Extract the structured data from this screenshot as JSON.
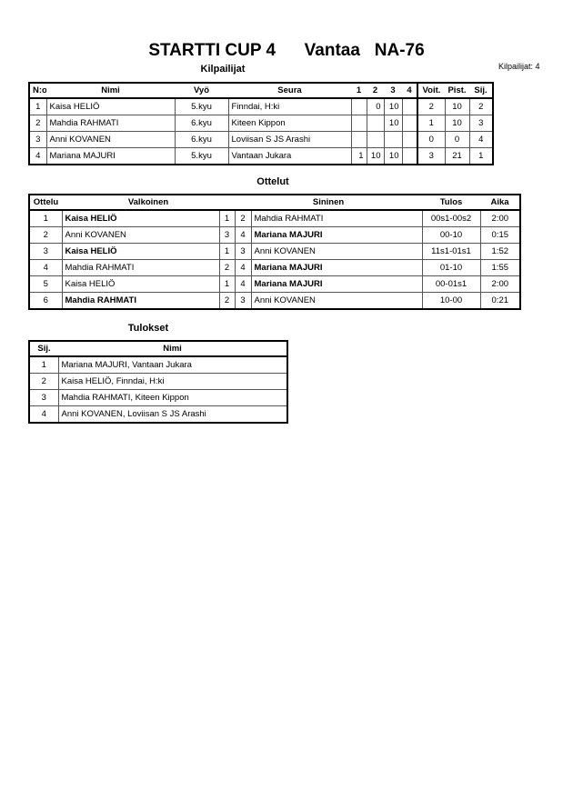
{
  "header": {
    "title": "STARTTI CUP 4      Vantaa   NA-76",
    "count": "Kilpailijat: 4"
  },
  "competitors": {
    "title": "Kilpailijat",
    "columns": [
      "N:o",
      "Nimi",
      "Vyö",
      "Seura",
      "1",
      "2",
      "3",
      "4",
      "Voit.",
      "Pist.",
      "Sij."
    ],
    "rows": [
      {
        "no": "1",
        "name": "Kaisa HELIÖ",
        "belt": "5.kyu",
        "club": "Finndai, H:ki",
        "m1": "",
        "m2": "0",
        "m3": "10",
        "m4": "",
        "wins": "2",
        "points": "10",
        "rank": "2"
      },
      {
        "no": "2",
        "name": "Mahdia RAHMATI",
        "belt": "6.kyu",
        "club": "Kiteen Kippon",
        "m1": "",
        "m2": "",
        "m3": "10",
        "m4": "",
        "wins": "1",
        "points": "10",
        "rank": "3"
      },
      {
        "no": "3",
        "name": "Anni KOVANEN",
        "belt": "6.kyu",
        "club": "Loviisan S JS Arashi",
        "m1": "",
        "m2": "",
        "m3": "",
        "m4": "",
        "wins": "0",
        "points": "0",
        "rank": "4"
      },
      {
        "no": "4",
        "name": "Mariana MAJURI",
        "belt": "5.kyu",
        "club": "Vantaan Jukara",
        "m1": "1",
        "m2": "10",
        "m3": "10",
        "m4": "",
        "wins": "3",
        "points": "21",
        "rank": "1"
      }
    ]
  },
  "matches": {
    "title": "Ottelut",
    "columns": [
      "Ottelu",
      "Valkoinen",
      "Sininen",
      "Tulos",
      "Aika"
    ],
    "rows": [
      {
        "no": "1",
        "white": "Kaisa HELIÖ",
        "wn": "1",
        "bn": "2",
        "blue": "Mahdia RAHMATI",
        "result": "00s1-00s2",
        "time": "2:00",
        "winner": "white"
      },
      {
        "no": "2",
        "white": "Anni KOVANEN",
        "wn": "3",
        "bn": "4",
        "blue": "Mariana MAJURI",
        "result": "00-10",
        "time": "0:15",
        "winner": "blue"
      },
      {
        "no": "3",
        "white": "Kaisa HELIÖ",
        "wn": "1",
        "bn": "3",
        "blue": "Anni KOVANEN",
        "result": "11s1-01s1",
        "time": "1:52",
        "winner": "white"
      },
      {
        "no": "4",
        "white": "Mahdia RAHMATI",
        "wn": "2",
        "bn": "4",
        "blue": "Mariana MAJURI",
        "result": "01-10",
        "time": "1:55",
        "winner": "blue"
      },
      {
        "no": "5",
        "white": "Kaisa HELIÖ",
        "wn": "1",
        "bn": "4",
        "blue": "Mariana MAJURI",
        "result": "00-01s1",
        "time": "2:00",
        "winner": "blue"
      },
      {
        "no": "6",
        "white": "Mahdia RAHMATI",
        "wn": "2",
        "bn": "3",
        "blue": "Anni KOVANEN",
        "result": "10-00",
        "time": "0:21",
        "winner": "white"
      }
    ]
  },
  "results": {
    "title": "Tulokset",
    "columns": [
      "Sij.",
      "Nimi"
    ],
    "rows": [
      {
        "rank": "1",
        "name": "Mariana MAJURI, Vantaan Jukara"
      },
      {
        "rank": "2",
        "name": "Kaisa HELIÖ, Finndai, H:ki"
      },
      {
        "rank": "3",
        "name": "Mahdia RAHMATI, Kiteen Kippon"
      },
      {
        "rank": "4",
        "name": "Anni KOVANEN, Loviisan S JS Arashi"
      }
    ]
  }
}
